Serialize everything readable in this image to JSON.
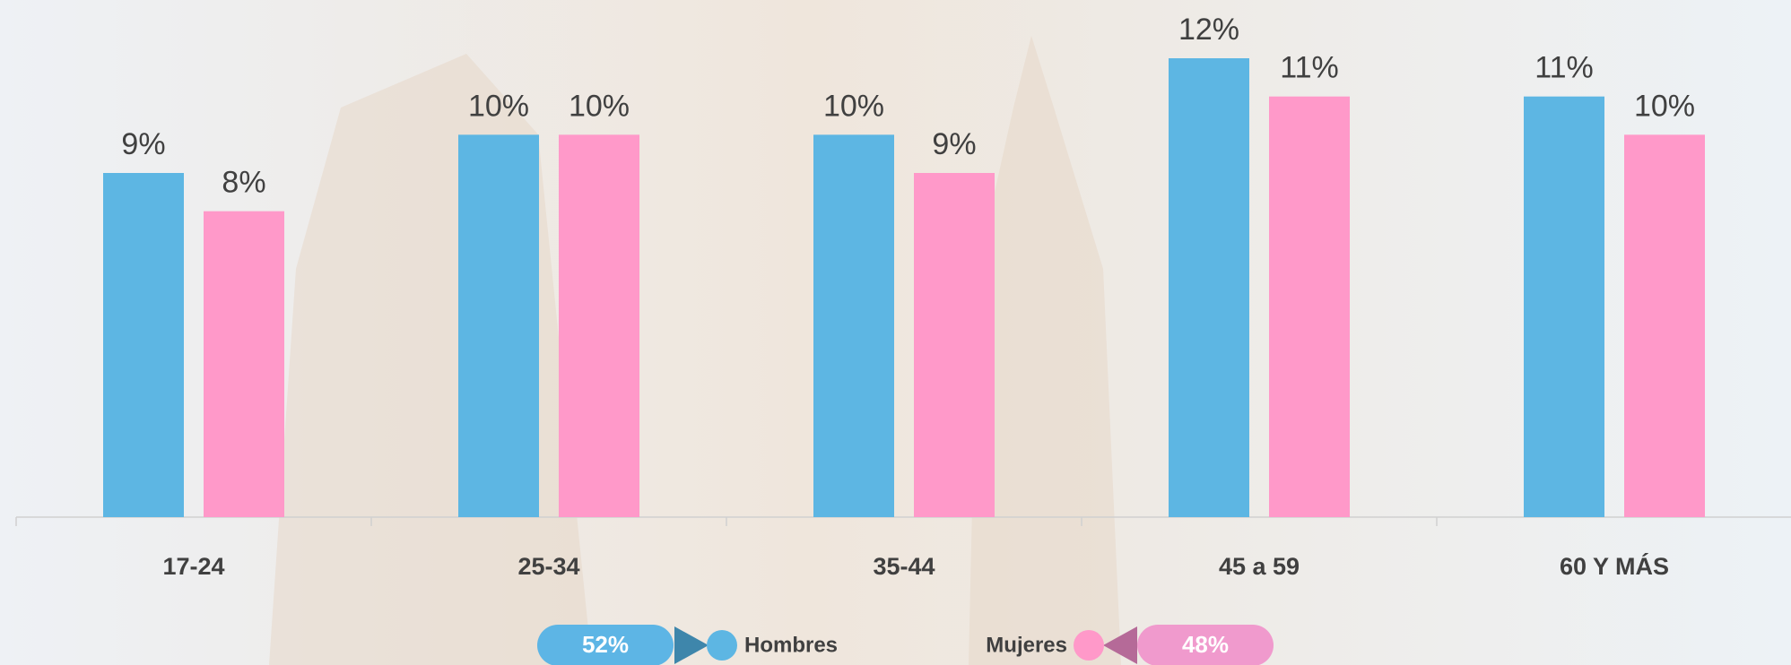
{
  "chart_data": {
    "type": "bar",
    "categories": [
      "17-24",
      "25-34",
      "35-44",
      "45 a 59",
      "60 Y MÁS"
    ],
    "series": [
      {
        "name": "Hombres",
        "color": "#5db6e3",
        "values": [
          9,
          10,
          10,
          12,
          11
        ],
        "value_labels": [
          "9%",
          "10%",
          "10%",
          "12%",
          "11%"
        ],
        "total": 52,
        "total_label": "52%"
      },
      {
        "name": "Mujeres",
        "color": "#ff99c9",
        "values": [
          8,
          10,
          9,
          11,
          10
        ],
        "value_labels": [
          "8%",
          "10%",
          "9%",
          "11%",
          "10%"
        ],
        "total": 48,
        "total_label": "48%"
      }
    ],
    "ylim": [
      0,
      12
    ]
  }
}
